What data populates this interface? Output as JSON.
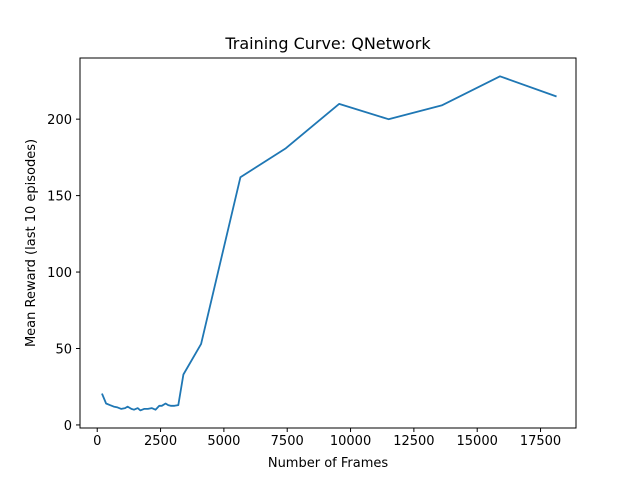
{
  "chart_data": {
    "type": "line",
    "title": "Training Curve: QNetwork",
    "xlabel": "Number of Frames",
    "ylabel": "Mean Reward (last 10 episodes)",
    "xlim": [
      -680,
      18900
    ],
    "ylim": [
      -2,
      240
    ],
    "xticks": [
      0,
      2500,
      5000,
      7500,
      10000,
      12500,
      15000,
      17500
    ],
    "yticks": [
      0,
      50,
      100,
      150,
      200
    ],
    "grid": false,
    "series_color": "#1f77b4",
    "series": [
      {
        "x": [
          200,
          350,
          500,
          650,
          800,
          950,
          1100,
          1200,
          1350,
          1450,
          1600,
          1700,
          1850,
          2000,
          2150,
          2300,
          2450,
          2550,
          2700,
          2800,
          2900,
          3050,
          3200,
          3400,
          4100,
          5650,
          7450,
          9550,
          11500,
          13600,
          15900,
          18100
        ],
        "y": [
          20,
          14,
          13,
          12,
          11.5,
          10.5,
          11,
          12,
          10.5,
          10,
          11,
          9.5,
          10.5,
          10.5,
          11,
          10,
          12.5,
          12.5,
          14,
          13,
          12.5,
          12.5,
          13,
          33,
          53,
          162,
          181,
          210,
          200,
          209,
          228,
          215
        ]
      }
    ]
  }
}
